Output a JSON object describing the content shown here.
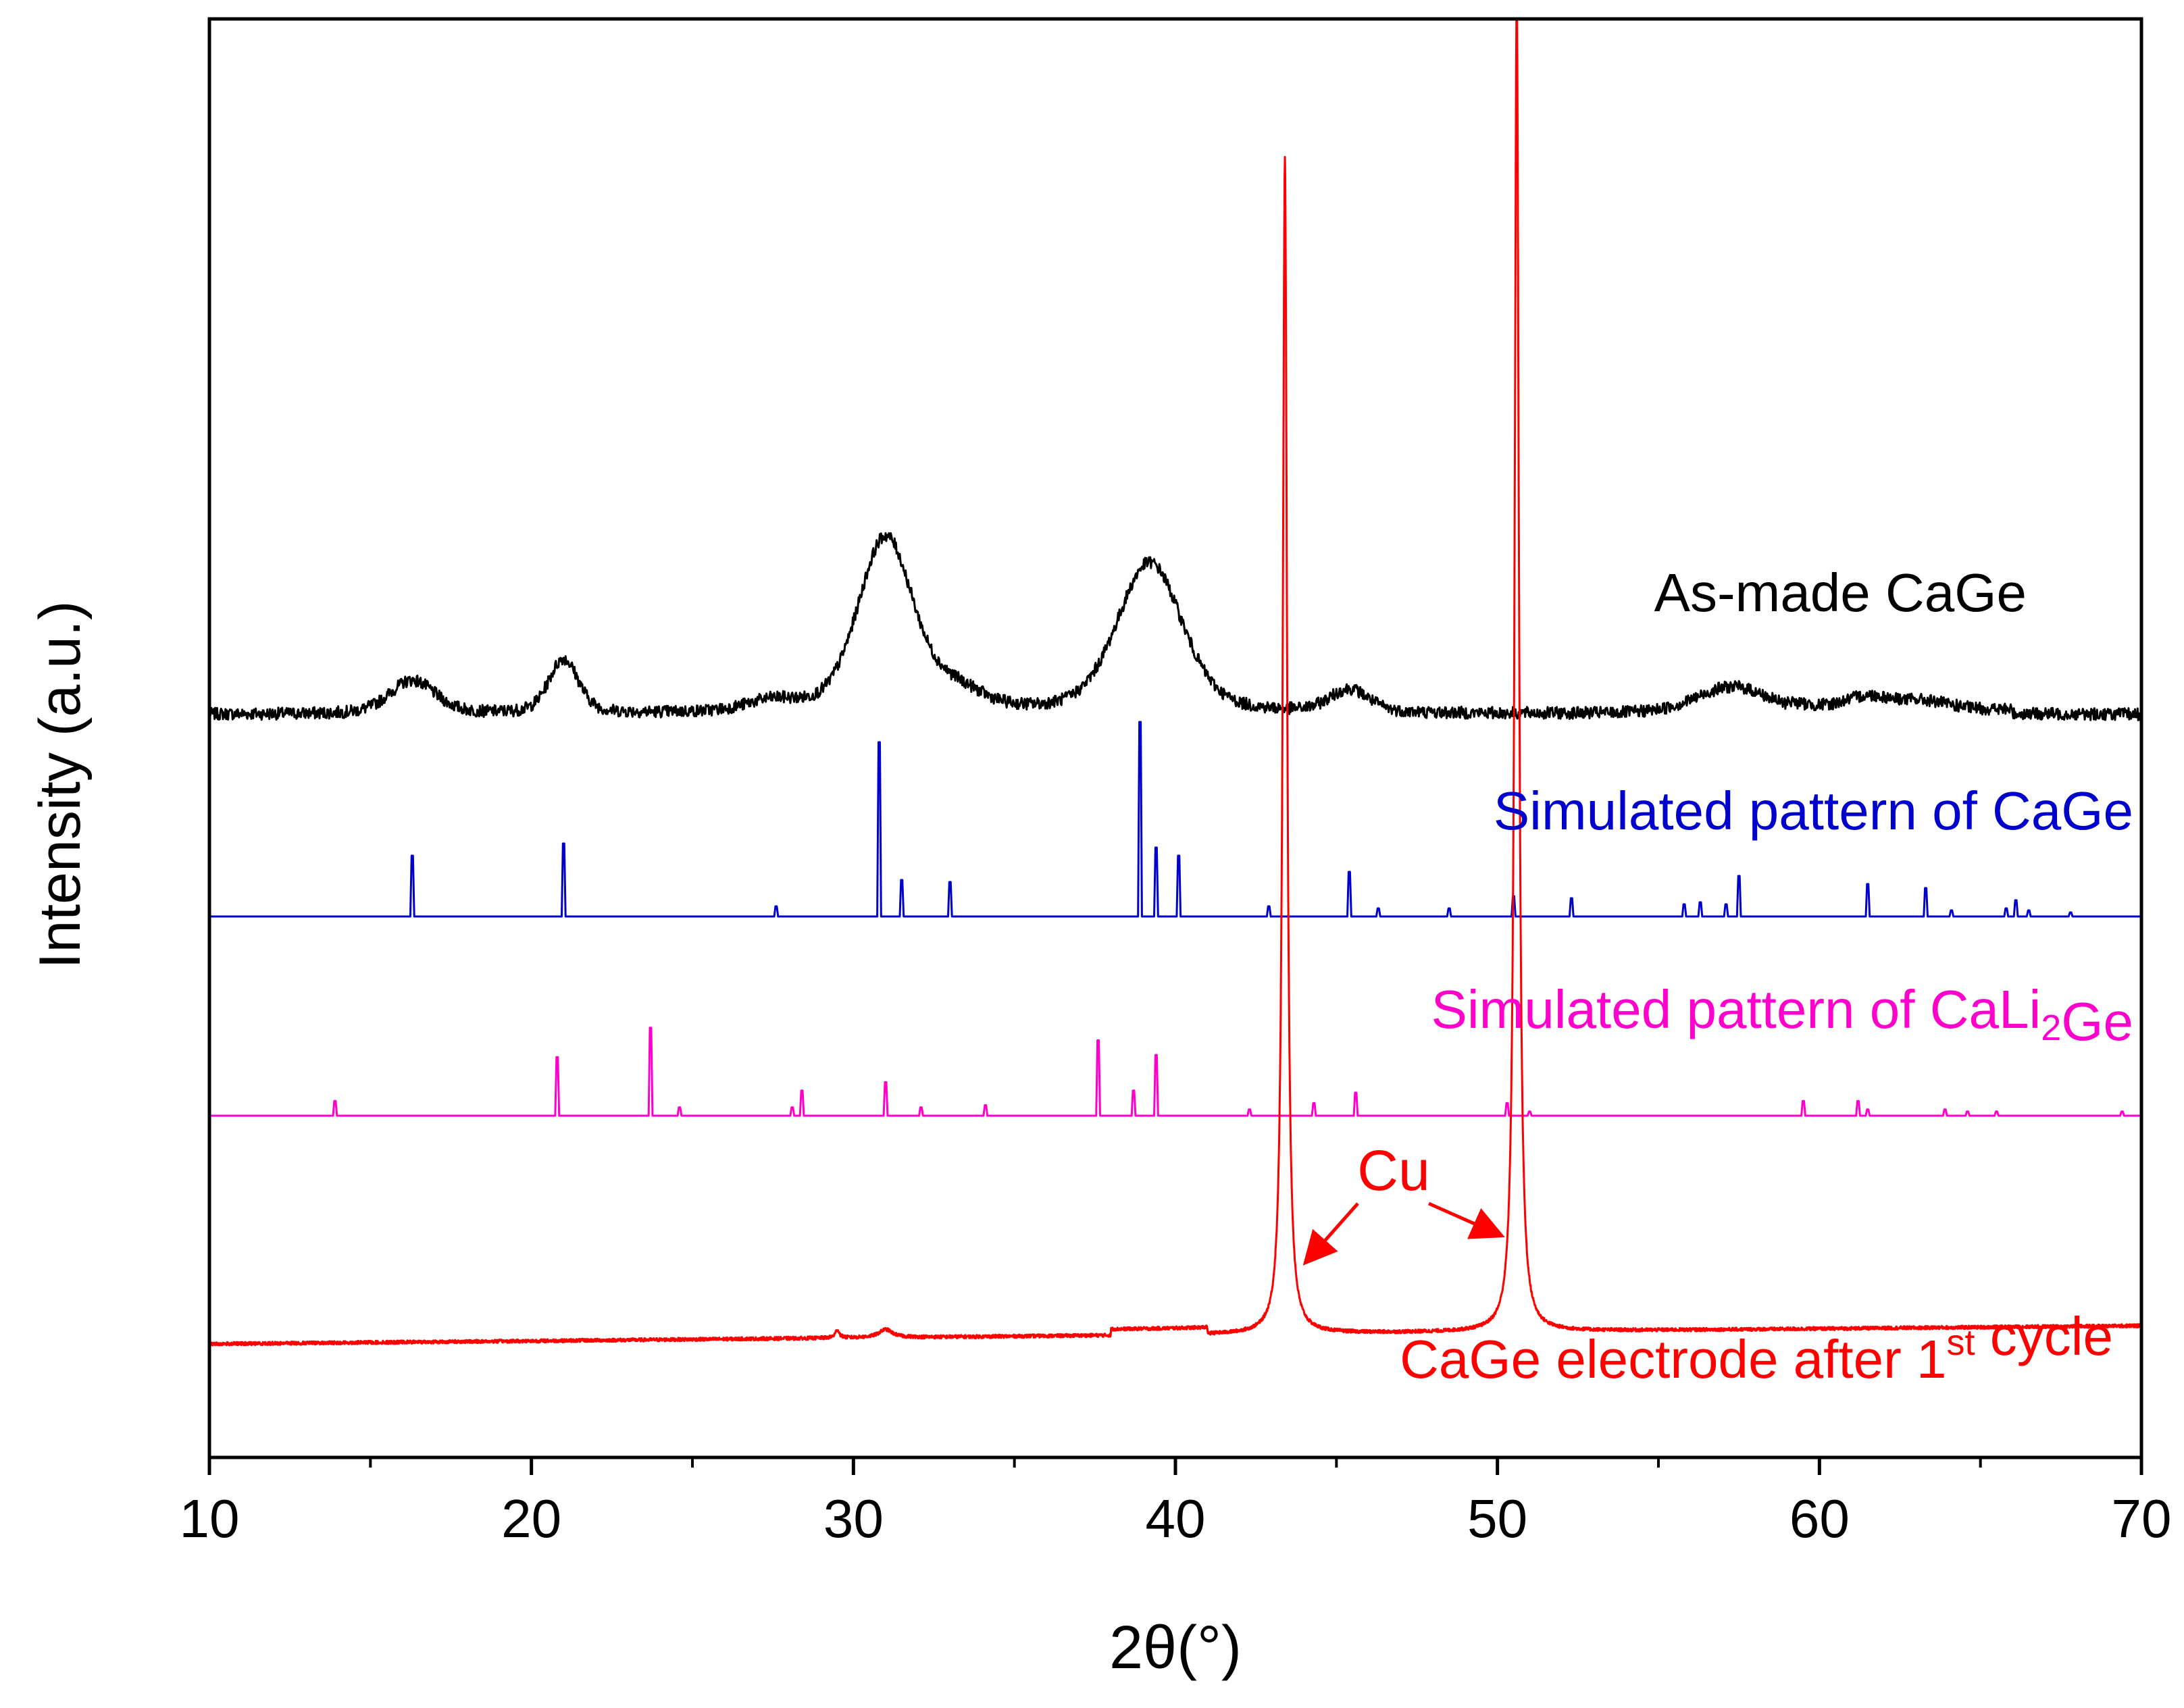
{
  "chart_data": {
    "type": "line",
    "title": "",
    "xlabel": "2θ(°)",
    "ylabel": "Intensity (a.u.)",
    "xlim": [
      10,
      70
    ],
    "x_ticks": [
      10,
      20,
      30,
      40,
      50,
      60,
      70
    ],
    "y_ticks": "none (arbitrary units)",
    "grid": false,
    "series": [
      {
        "name": "As-made CaGe",
        "color": "#000000",
        "label": "As-made CaGe",
        "kind": "broad-peaks",
        "baseline": 0.0,
        "peaks": [
          {
            "x": 16.3,
            "height": 0.8,
            "width": 0.7
          },
          {
            "x": 21.0,
            "height": 1.3,
            "width": 0.45
          },
          {
            "x": 27.5,
            "height": 0.25,
            "width": 0.8
          },
          {
            "x": 31.0,
            "height": 4.2,
            "width": 0.85
          },
          {
            "x": 33.2,
            "height": 0.45,
            "width": 0.8
          },
          {
            "x": 39.2,
            "height": 3.6,
            "width": 1.0
          },
          {
            "x": 45.4,
            "height": 0.55,
            "width": 0.6
          },
          {
            "x": 57.3,
            "height": 0.65,
            "width": 1.1
          },
          {
            "x": 61.5,
            "height": 0.3,
            "width": 0.7
          },
          {
            "x": 63.2,
            "height": 0.2,
            "width": 0.8
          }
        ]
      },
      {
        "name": "Simulated pattern of CaGe",
        "color": "#0000cc",
        "label_parts": [
          {
            "text": "Simulated pattern of CaGe"
          }
        ],
        "kind": "sticks",
        "peaks": [
          {
            "x": 16.3,
            "height": 1.5
          },
          {
            "x": 21.0,
            "height": 1.8
          },
          {
            "x": 27.6,
            "height": 0.25
          },
          {
            "x": 30.8,
            "height": 4.3
          },
          {
            "x": 31.5,
            "height": 0.9
          },
          {
            "x": 33.0,
            "height": 0.85
          },
          {
            "x": 38.9,
            "height": 4.8
          },
          {
            "x": 39.4,
            "height": 1.7
          },
          {
            "x": 40.1,
            "height": 1.5
          },
          {
            "x": 42.9,
            "height": 0.25
          },
          {
            "x": 45.4,
            "height": 1.1
          },
          {
            "x": 46.3,
            "height": 0.2
          },
          {
            "x": 48.5,
            "height": 0.2
          },
          {
            "x": 50.5,
            "height": 0.5
          },
          {
            "x": 52.3,
            "height": 0.45
          },
          {
            "x": 55.8,
            "height": 0.3
          },
          {
            "x": 56.3,
            "height": 0.35
          },
          {
            "x": 57.1,
            "height": 0.3
          },
          {
            "x": 57.5,
            "height": 1.0
          },
          {
            "x": 61.5,
            "height": 0.8
          },
          {
            "x": 63.3,
            "height": 0.7
          },
          {
            "x": 64.1,
            "height": 0.15
          },
          {
            "x": 65.8,
            "height": 0.2
          },
          {
            "x": 66.1,
            "height": 0.4
          },
          {
            "x": 66.5,
            "height": 0.15
          },
          {
            "x": 67.8,
            "height": 0.1
          }
        ]
      },
      {
        "name": "Simulated pattern of CaLi2Ge",
        "color": "#ff00cc",
        "label_parts": [
          {
            "text": "Simulated pattern of CaLi"
          },
          {
            "text": "2",
            "sub": true
          },
          {
            "text": "Ge"
          }
        ],
        "kind": "sticks",
        "peaks": [
          {
            "x": 13.9,
            "height": 0.35
          },
          {
            "x": 20.8,
            "height": 1.4
          },
          {
            "x": 23.7,
            "height": 2.1
          },
          {
            "x": 24.6,
            "height": 0.2
          },
          {
            "x": 28.1,
            "height": 0.2
          },
          {
            "x": 28.4,
            "height": 0.6
          },
          {
            "x": 31.0,
            "height": 0.8
          },
          {
            "x": 32.1,
            "height": 0.2
          },
          {
            "x": 34.1,
            "height": 0.25
          },
          {
            "x": 37.6,
            "height": 1.8
          },
          {
            "x": 38.7,
            "height": 0.6
          },
          {
            "x": 39.4,
            "height": 1.45
          },
          {
            "x": 42.3,
            "height": 0.15
          },
          {
            "x": 44.3,
            "height": 0.3
          },
          {
            "x": 45.6,
            "height": 0.55
          },
          {
            "x": 50.3,
            "height": 0.3
          },
          {
            "x": 51.0,
            "height": 0.1
          },
          {
            "x": 59.5,
            "height": 0.35
          },
          {
            "x": 61.2,
            "height": 0.35
          },
          {
            "x": 61.5,
            "height": 0.15
          },
          {
            "x": 63.9,
            "height": 0.15
          },
          {
            "x": 64.6,
            "height": 0.1
          },
          {
            "x": 65.5,
            "height": 0.1
          },
          {
            "x": 69.4,
            "height": 0.1
          }
        ]
      },
      {
        "name": "CaGe electrode after 1st cycle",
        "color": "#ff0000",
        "label_parts": [
          {
            "text": "CaGe electrode after 1"
          },
          {
            "text": "st",
            "sup": true
          },
          {
            "text": " cycle"
          }
        ],
        "kind": "sharp-peaks",
        "peaks": [
          {
            "x": 43.4,
            "height": 29.0,
            "width": 0.16
          },
          {
            "x": 50.6,
            "height": 33.0,
            "width": 0.16
          },
          {
            "x": 29.5,
            "height": 0.2,
            "width": 0.15
          },
          {
            "x": 31.0,
            "height": 0.2,
            "width": 0.5
          }
        ]
      }
    ],
    "annotations": [
      {
        "text": "Cu",
        "color": "#ff0000",
        "points_to_x": [
          43.4,
          50.6
        ]
      }
    ]
  }
}
